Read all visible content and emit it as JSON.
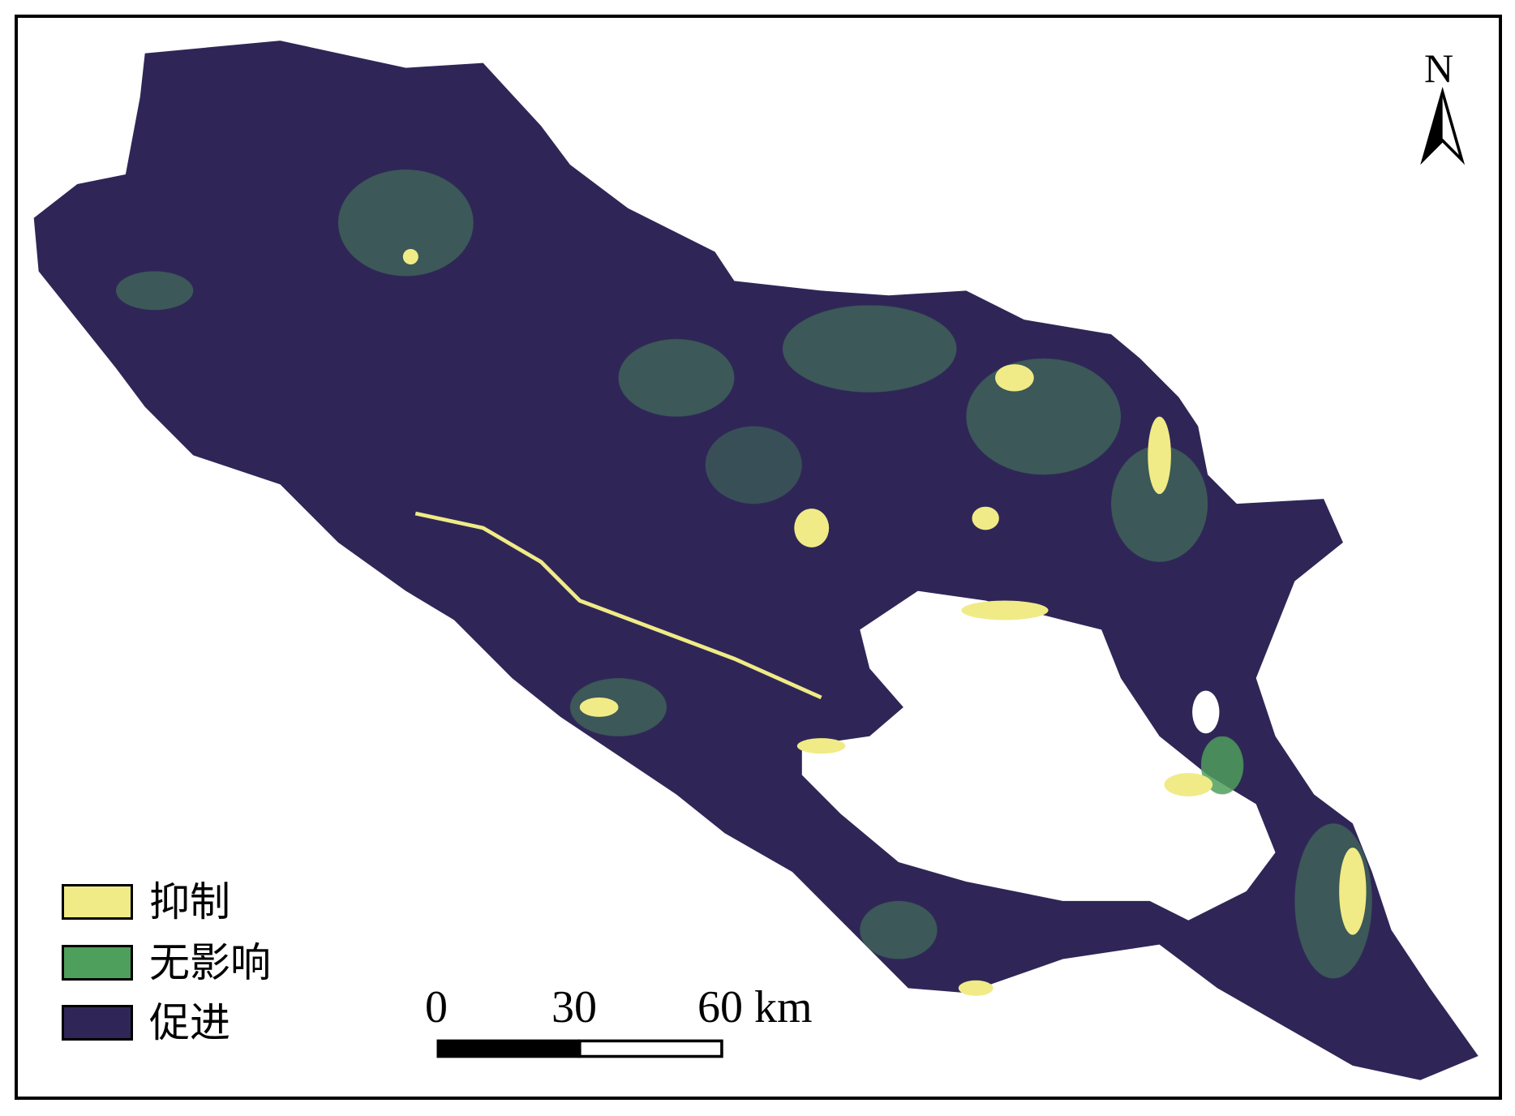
{
  "legend": {
    "items": [
      {
        "label": "抑制",
        "color": "#f0eb86"
      },
      {
        "label": "无影响",
        "color": "#4e9f5b"
      },
      {
        "label": "促进",
        "color": "#2f2657"
      }
    ]
  },
  "scale_bar": {
    "labels": [
      "0",
      "30",
      "60 km"
    ]
  },
  "north_arrow": {
    "label": "N"
  },
  "colors": {
    "background": "#ffffff",
    "lake": "#ffffff"
  }
}
